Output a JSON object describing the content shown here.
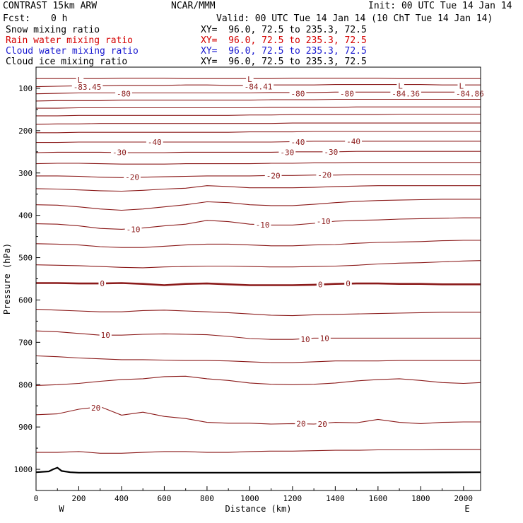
{
  "header": {
    "title": "CONTRAST 15km ARW",
    "org": "NCAR/MMM",
    "init": "Init: 00 UTC Tue 14 Jan 14",
    "fcst_label": "Fcst:",
    "fcst_value": "0 h",
    "valid": "Valid: 00 UTC Tue 14 Jan 14 (10 ChT Tue 14 Jan 14)"
  },
  "fields": [
    {
      "name": "Snow mixing ratio",
      "xy": "XY=  96.0, 72.5 to 235.3, 72.5",
      "color": "#000000"
    },
    {
      "name": "Rain water mixing ratio",
      "xy": "XY=  96.0, 72.5 to 235.3, 72.5",
      "color": "#d40000"
    },
    {
      "name": "Cloud water mixing ratio",
      "xy": "XY=  96.0, 72.5 to 235.3, 72.5",
      "color": "#1a1ad0"
    },
    {
      "name": "Cloud ice mixing ratio",
      "xy": "XY=  96.0, 72.5 to 235.3, 72.5",
      "color": "#000000"
    }
  ],
  "chart_data": {
    "type": "line",
    "title": "",
    "xlabel": "Distance (km)",
    "ylabel": "Pressure (hPa)",
    "xlim": [
      0,
      2080
    ],
    "ylim": [
      1050,
      50
    ],
    "x_ticks": [
      0,
      200,
      400,
      600,
      800,
      1000,
      1200,
      1400,
      1600,
      1800,
      2000
    ],
    "y_ticks": [
      100,
      200,
      300,
      400,
      500,
      600,
      700,
      800,
      900,
      1000
    ],
    "x_end_labels": {
      "left": "W",
      "right": "E"
    },
    "contour_color": "#8b1a1a",
    "terrain_color": "#000000",
    "x": [
      0,
      100,
      200,
      300,
      400,
      500,
      600,
      700,
      800,
      900,
      1000,
      1100,
      1200,
      1300,
      1400,
      1500,
      1600,
      1700,
      1800,
      1900,
      2000,
      2080
    ],
    "contours": [
      {
        "values": [
          77,
          77,
          77,
          77,
          76,
          76,
          76,
          77,
          77,
          77,
          77,
          77,
          76,
          76,
          76,
          76,
          76,
          77,
          77,
          77,
          77,
          77
        ]
      },
      {
        "values": [
          96,
          95,
          94,
          94,
          93,
          93,
          93,
          92,
          92,
          93,
          93,
          92,
          92,
          92,
          91,
          91,
          91,
          91,
          91,
          92,
          92,
          92
        ]
      },
      {
        "values": [
          113,
          112,
          111,
          111,
          111,
          111,
          111,
          111,
          111,
          111,
          111,
          110,
          110,
          110,
          109,
          109,
          109,
          109,
          109,
          109,
          109,
          109
        ],
        "label": "-80"
      },
      {
        "values": [
          130,
          129,
          129,
          129,
          128,
          128,
          128,
          128,
          128,
          128,
          128,
          127,
          127,
          127,
          126,
          126,
          126,
          126,
          126,
          126,
          126,
          126
        ]
      },
      {
        "values": [
          147,
          147,
          146,
          146,
          146,
          146,
          146,
          146,
          146,
          146,
          146,
          145,
          145,
          145,
          145,
          144,
          144,
          144,
          144,
          144,
          144,
          144
        ]
      },
      {
        "values": [
          165,
          165,
          164,
          164,
          164,
          164,
          164,
          164,
          164,
          164,
          163,
          163,
          162,
          162,
          162,
          162,
          162,
          161,
          161,
          161,
          161,
          161
        ]
      },
      {
        "values": [
          185,
          184,
          184,
          183,
          183,
          183,
          183,
          183,
          183,
          183,
          183,
          183,
          182,
          182,
          182,
          182,
          182,
          182,
          182,
          182,
          182,
          182
        ]
      },
      {
        "values": [
          205,
          205,
          204,
          204,
          204,
          204,
          204,
          204,
          204,
          204,
          203,
          203,
          203,
          202,
          202,
          202,
          202,
          202,
          202,
          202,
          202,
          202
        ]
      },
      {
        "values": [
          228,
          228,
          227,
          227,
          227,
          227,
          227,
          227,
          227,
          227,
          227,
          227,
          226,
          225,
          225,
          225,
          225,
          225,
          225,
          225,
          225,
          225
        ],
        "label": "-40"
      },
      {
        "values": [
          252,
          251,
          251,
          251,
          252,
          252,
          252,
          251,
          251,
          251,
          251,
          251,
          250,
          250,
          250,
          249,
          249,
          249,
          249,
          249,
          249,
          249
        ],
        "label": "-30"
      },
      {
        "values": [
          278,
          277,
          277,
          278,
          279,
          279,
          279,
          278,
          278,
          278,
          278,
          277,
          277,
          276,
          276,
          275,
          275,
          275,
          275,
          275,
          275,
          275
        ]
      },
      {
        "values": [
          307,
          307,
          308,
          310,
          311,
          310,
          309,
          308,
          307,
          307,
          307,
          306,
          306,
          305,
          305,
          304,
          304,
          304,
          304,
          304,
          304,
          304
        ],
        "label": "-20"
      },
      {
        "values": [
          337,
          338,
          340,
          342,
          343,
          341,
          338,
          336,
          330,
          332,
          335,
          335,
          335,
          334,
          332,
          331,
          330,
          330,
          330,
          330,
          330,
          330
        ]
      },
      {
        "values": [
          375,
          376,
          380,
          385,
          388,
          385,
          380,
          375,
          368,
          370,
          375,
          377,
          377,
          374,
          370,
          367,
          365,
          364,
          363,
          362,
          362,
          362
        ],
        "label": "-10"
      },
      {
        "values": [
          420,
          421,
          425,
          431,
          433,
          430,
          425,
          421,
          412,
          415,
          421,
          423,
          423,
          419,
          414,
          412,
          411,
          409,
          408,
          407,
          406,
          406
        ]
      },
      {
        "values": [
          467,
          468,
          470,
          474,
          476,
          476,
          473,
          470,
          468,
          468,
          470,
          472,
          472,
          470,
          469,
          466,
          464,
          463,
          462,
          460,
          459,
          459
        ]
      },
      {
        "values": [
          517,
          518,
          519,
          521,
          523,
          524,
          522,
          521,
          520,
          520,
          521,
          522,
          522,
          521,
          520,
          518,
          515,
          513,
          512,
          510,
          508,
          507
        ]
      },
      {
        "values": [
          560,
          560,
          561,
          561,
          560,
          562,
          565,
          562,
          561,
          563,
          565,
          565,
          565,
          564,
          562,
          561,
          561,
          562,
          562,
          563,
          563,
          563
        ],
        "label": "0",
        "bold": true
      },
      {
        "values": [
          622,
          624,
          626,
          628,
          628,
          625,
          624,
          626,
          628,
          630,
          633,
          636,
          637,
          635,
          634,
          633,
          632,
          631,
          630,
          629,
          629,
          629
        ]
      },
      {
        "values": [
          673,
          675,
          679,
          683,
          683,
          681,
          680,
          681,
          682,
          686,
          691,
          693,
          693,
          690,
          690,
          690,
          690,
          690,
          690,
          690,
          690,
          690
        ],
        "label": "10"
      },
      {
        "values": [
          732,
          734,
          737,
          739,
          741,
          741,
          742,
          743,
          743,
          744,
          746,
          748,
          748,
          746,
          744,
          744,
          744,
          743,
          743,
          743,
          743,
          743
        ]
      },
      {
        "values": [
          802,
          800,
          797,
          792,
          788,
          786,
          781,
          780,
          786,
          790,
          796,
          799,
          800,
          799,
          796,
          791,
          788,
          786,
          790,
          795,
          797,
          795
        ]
      },
      {
        "values": [
          871,
          869,
          858,
          852,
          872,
          865,
          875,
          880,
          889,
          891,
          891,
          893,
          892,
          893,
          889,
          890,
          882,
          889,
          892,
          889,
          888,
          888
        ],
        "label": "20"
      },
      {
        "values": [
          960,
          960,
          958,
          962,
          962,
          960,
          958,
          958,
          960,
          960,
          958,
          957,
          957,
          956,
          955,
          955,
          954,
          954,
          954,
          953,
          953,
          953
        ]
      }
    ],
    "terrain": {
      "x": [
        0,
        60,
        80,
        100,
        120,
        160,
        200,
        400,
        1000,
        1600,
        2080
      ],
      "values": [
        1007,
        1005,
        1000,
        996,
        1004,
        1007,
        1008,
        1008,
        1008,
        1008,
        1007
      ]
    },
    "annotations": [
      {
        "text": "L",
        "x": 205,
        "p": 80,
        "color": "#8b1a1a"
      },
      {
        "text": "-83.45",
        "x": 240,
        "p": 97,
        "color": "#8b1a1a"
      },
      {
        "text": "L",
        "x": 1000,
        "p": 78,
        "color": "#8b1a1a"
      },
      {
        "text": "-84.41",
        "x": 1040,
        "p": 96,
        "color": "#8b1a1a"
      },
      {
        "text": "L",
        "x": 1705,
        "p": 94,
        "color": "#8b1a1a"
      },
      {
        "text": "-84.36",
        "x": 1730,
        "p": 113,
        "color": "#8b1a1a"
      },
      {
        "text": "L",
        "x": 1990,
        "p": 94,
        "color": "#8b1a1a"
      },
      {
        "text": "-84.86",
        "x": 2030,
        "p": 113,
        "color": "#8b1a1a"
      },
      {
        "text": "-80",
        "x": 410,
        "p": 113,
        "color": "#8b1a1a"
      },
      {
        "text": "-80",
        "x": 1225,
        "p": 113,
        "color": "#8b1a1a"
      },
      {
        "text": "-80",
        "x": 1455,
        "p": 113,
        "color": "#8b1a1a"
      },
      {
        "text": "-40",
        "x": 555,
        "p": 227,
        "color": "#8b1a1a"
      },
      {
        "text": "-40",
        "x": 1225,
        "p": 227,
        "color": "#8b1a1a"
      },
      {
        "text": "-40",
        "x": 1485,
        "p": 225,
        "color": "#8b1a1a"
      },
      {
        "text": "-30",
        "x": 390,
        "p": 251,
        "color": "#8b1a1a"
      },
      {
        "text": "-30",
        "x": 1175,
        "p": 251,
        "color": "#8b1a1a"
      },
      {
        "text": "-30",
        "x": 1380,
        "p": 250,
        "color": "#8b1a1a"
      },
      {
        "text": "-20",
        "x": 450,
        "p": 310,
        "color": "#8b1a1a"
      },
      {
        "text": "-20",
        "x": 1110,
        "p": 306,
        "color": "#8b1a1a"
      },
      {
        "text": "-20",
        "x": 1350,
        "p": 305,
        "color": "#8b1a1a"
      },
      {
        "text": "-10",
        "x": 455,
        "p": 433,
        "color": "#8b1a1a"
      },
      {
        "text": "-10",
        "x": 1060,
        "p": 422,
        "color": "#8b1a1a"
      },
      {
        "text": "-10",
        "x": 1345,
        "p": 414,
        "color": "#8b1a1a"
      },
      {
        "text": "0",
        "x": 310,
        "p": 561,
        "color": "#8b1a1a"
      },
      {
        "text": "0",
        "x": 1330,
        "p": 563,
        "color": "#8b1a1a"
      },
      {
        "text": "0",
        "x": 1460,
        "p": 561,
        "color": "#8b1a1a"
      },
      {
        "text": "10",
        "x": 325,
        "p": 683,
        "color": "#8b1a1a"
      },
      {
        "text": "10",
        "x": 1260,
        "p": 693,
        "color": "#8b1a1a"
      },
      {
        "text": "10",
        "x": 1350,
        "p": 690,
        "color": "#8b1a1a"
      },
      {
        "text": "20",
        "x": 280,
        "p": 855,
        "color": "#8b1a1a"
      },
      {
        "text": "20",
        "x": 1240,
        "p": 892,
        "color": "#8b1a1a"
      },
      {
        "text": "20",
        "x": 1340,
        "p": 893,
        "color": "#8b1a1a"
      }
    ]
  }
}
